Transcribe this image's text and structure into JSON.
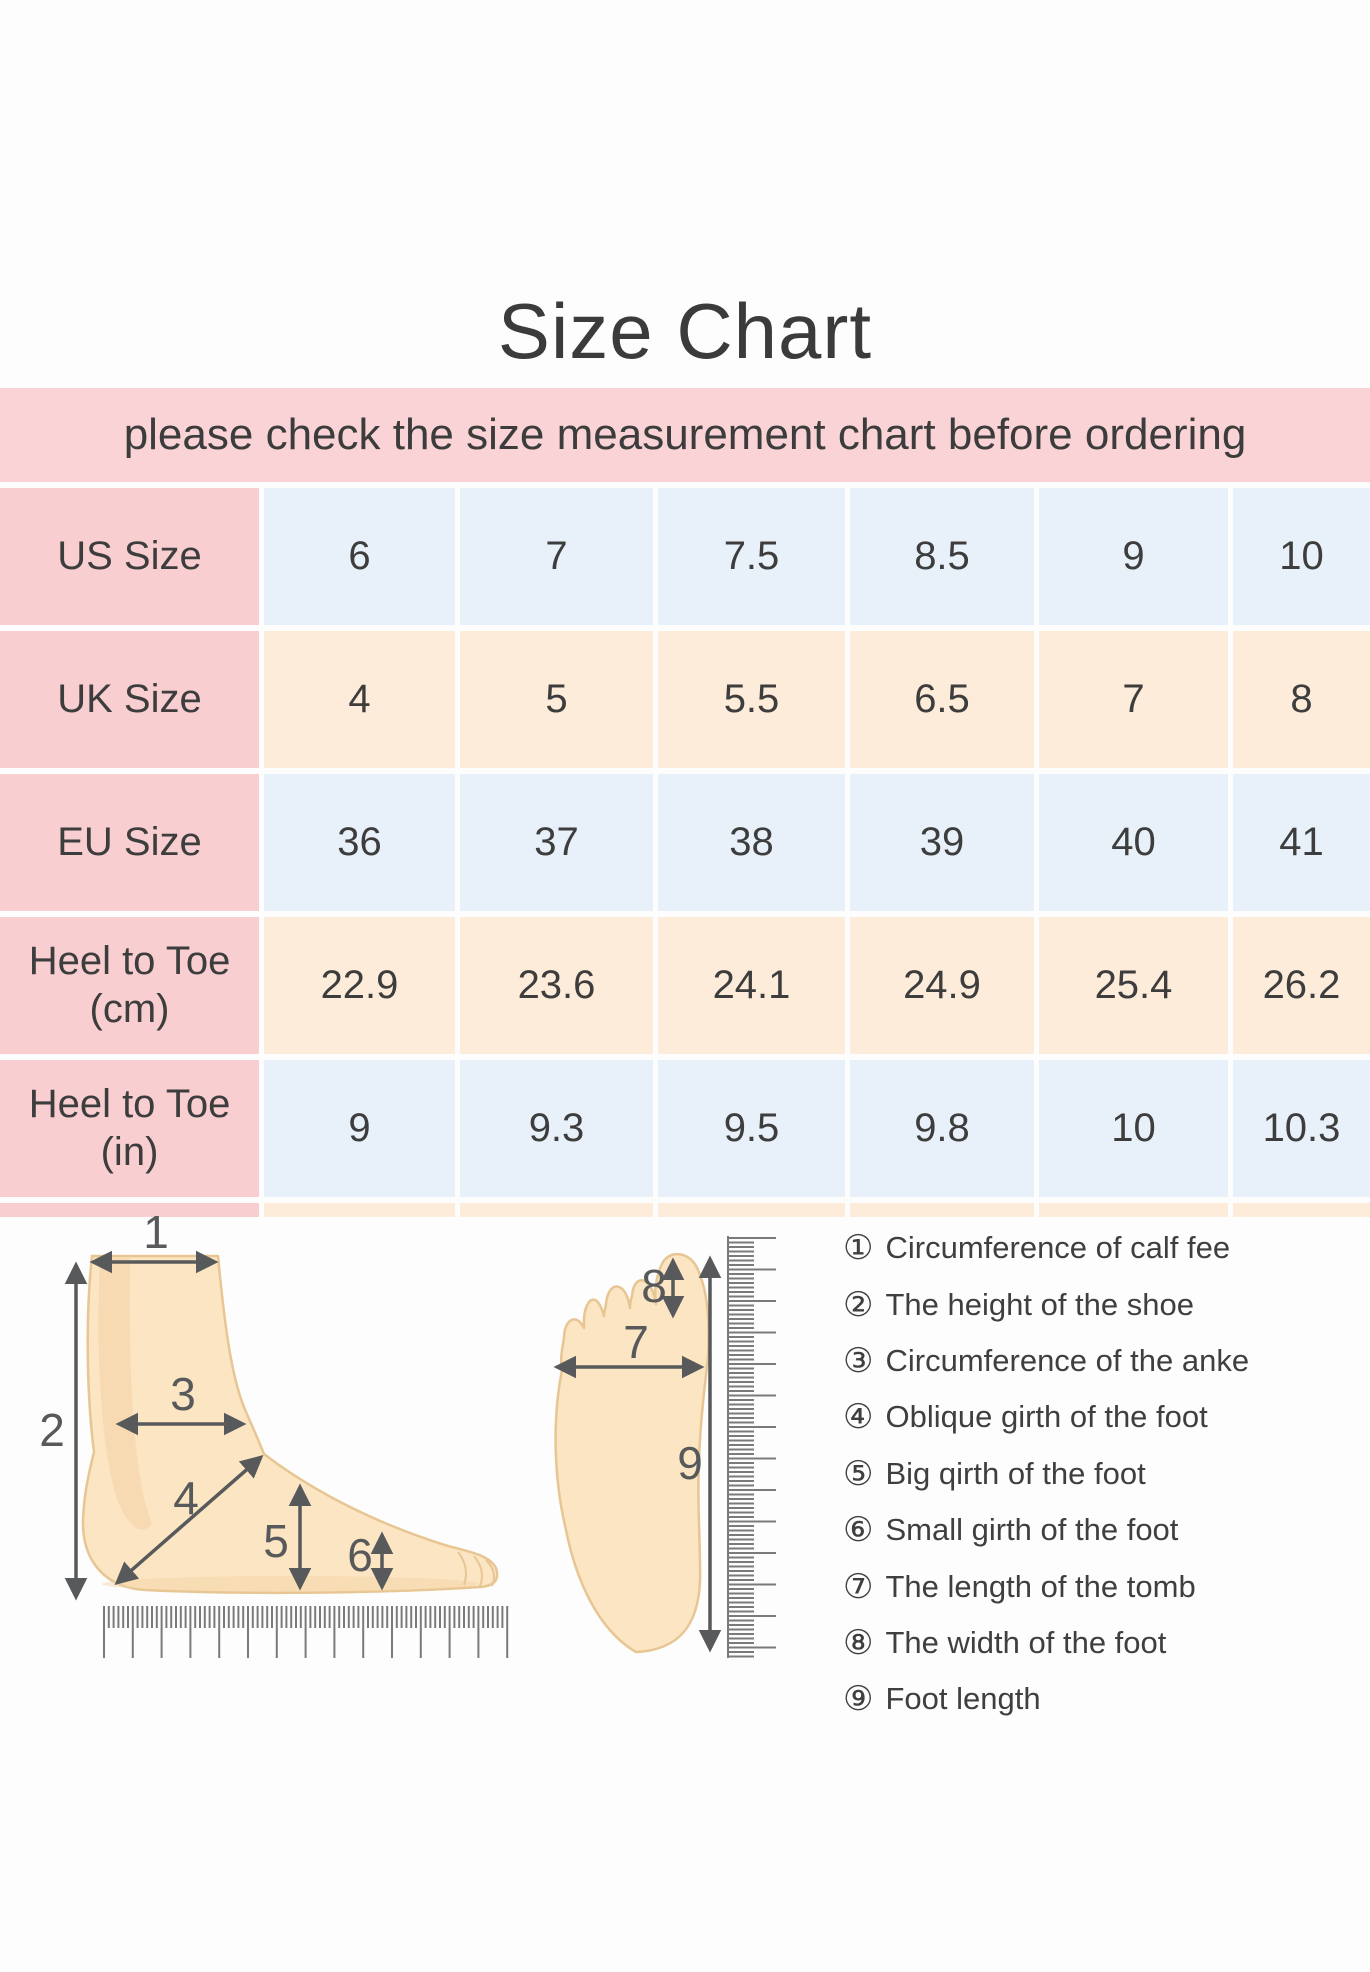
{
  "title": "Size Chart",
  "banner": {
    "text": "please check the size measurement chart before ordering"
  },
  "chart_data": {
    "type": "table",
    "title": "Size Chart",
    "note": "please check the size measurement chart before ordering",
    "row_headers": [
      "US Size",
      "UK Size",
      "EU Size",
      "Heel to Toe (cm)",
      "Heel to Toe (in)"
    ],
    "rows": [
      [
        "6",
        "7",
        "7.5",
        "8.5",
        "9",
        "10"
      ],
      [
        "4",
        "5",
        "5.5",
        "6.5",
        "7",
        "8"
      ],
      [
        "36",
        "37",
        "38",
        "39",
        "40",
        "41"
      ],
      [
        "22.9",
        "23.6",
        "24.1",
        "24.9",
        "25.4",
        "26.2"
      ],
      [
        "9",
        "9.3",
        "9.5",
        "9.8",
        "10",
        "10.3"
      ]
    ]
  },
  "diagram": {
    "side": [
      "1",
      "2",
      "3",
      "4",
      "5",
      "6"
    ],
    "top": [
      "7",
      "8",
      "9"
    ]
  },
  "legend": {
    "items": [
      {
        "num": "①",
        "label": "Circumference of calf fee"
      },
      {
        "num": "②",
        "label": "The height of the shoe"
      },
      {
        "num": "③",
        "label": "Circumference of the anke"
      },
      {
        "num": "④",
        "label": "Oblique girth of the foot"
      },
      {
        "num": "⑤",
        "label": "Big qirth of the foot"
      },
      {
        "num": "⑥",
        "label": "Small girth of the foot"
      },
      {
        "num": "⑦",
        "label": "The length of the tomb"
      },
      {
        "num": "⑧",
        "label": "The width of the foot"
      },
      {
        "num": "⑨",
        "label": "Foot length"
      }
    ]
  },
  "colors": {
    "banner_bg": "#f9d3d5",
    "label_column_bg": "#f8ced1",
    "blue_cell_bg": "#e8f1f9",
    "cream_cell_bg": "#fdecd9",
    "text": "#3e3e3e",
    "diagram_ink": "#58595b",
    "skin_fill": "#fbe5c2",
    "skin_outline": "#e7c694"
  }
}
